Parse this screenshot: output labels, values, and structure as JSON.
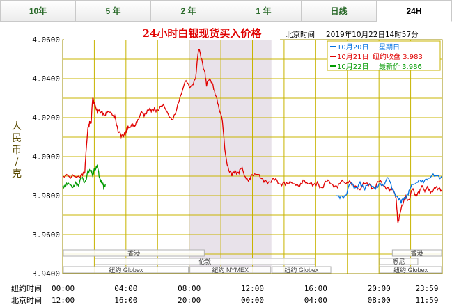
{
  "tabs": [
    {
      "label": "10年",
      "active": false
    },
    {
      "label": "5 年",
      "active": false
    },
    {
      "label": "2 年",
      "active": false
    },
    {
      "label": "1 年",
      "active": false
    },
    {
      "label": "日线",
      "active": false
    },
    {
      "label": "24H",
      "active": true
    }
  ],
  "header": {
    "title": "24小时白银现货买入价格",
    "time_label": "北京时间",
    "timestamp": "2019年10月22日14时57分"
  },
  "legend": [
    {
      "date": "10月20日",
      "text": "星期日",
      "color": "#0070e0"
    },
    {
      "date": "10月21日",
      "text": "纽约收盘 3.983",
      "color": "#e00000"
    },
    {
      "date": "10月22日",
      "text": "最新价 3.986",
      "color": "#009a00"
    }
  ],
  "y_axis_label": "人民币/克",
  "sessions": {
    "hongkong": "香港",
    "london": "伦敦",
    "globex": "纽约 Globex",
    "nymex": "纽约 NYMEX",
    "sydney": "悉尼"
  },
  "time_rows": {
    "ny_label": "纽约时间",
    "ny_ticks": [
      "00:00",
      "04:00",
      "08:00",
      "12:00",
      "16:00",
      "20:00",
      "23:59"
    ],
    "bj_label": "北京时间",
    "bj_ticks": [
      "12:00",
      "16:00",
      "20:00",
      "00:00",
      "04:00",
      "08:00",
      "11:59"
    ]
  },
  "colors": {
    "grid": "#c8b400",
    "nymex_shade": "#e8e2ea",
    "red": "#e00000",
    "green": "#009a00",
    "blue": "#0070e0"
  },
  "chart_data": {
    "type": "line",
    "title": "24小时白银现货买入价格",
    "ylabel": "人民币/克",
    "xlabel": "纽约时间",
    "ylim": [
      3.94,
      4.06
    ],
    "yticks": [
      "4.0600",
      "4.0400",
      "4.0200",
      "4.0000",
      "3.9800",
      "3.9600",
      "3.9400"
    ],
    "xlim": [
      0,
      24
    ],
    "grid": true,
    "legend_position": "top-right",
    "series": [
      {
        "name": "10月21日",
        "color": "#e00000",
        "x": [
          0,
          0.5,
          1,
          1.2,
          1.4,
          1.5,
          1.6,
          1.7,
          1.8,
          1.9,
          2.0,
          2.1,
          2.2,
          2.3,
          2.5,
          2.7,
          2.9,
          3.1,
          3.3,
          3.5,
          3.7,
          3.9,
          4.0,
          4.1,
          4.2,
          4.4,
          4.6,
          4.8,
          5.0,
          5.2,
          5.4,
          5.6,
          5.8,
          6.0,
          6.3,
          6.6,
          6.9,
          7.2,
          7.5,
          7.8,
          8.1,
          8.4,
          8.6,
          8.8,
          9.0,
          9.1,
          9.3,
          9.5,
          9.7,
          9.9,
          10.1,
          10.3,
          10.5,
          10.7,
          10.9,
          11.1,
          11.3,
          11.5,
          11.7,
          11.9,
          12.2,
          12.5,
          12.8,
          13.1,
          13.4,
          13.7,
          14.0,
          14.3,
          14.6,
          14.9,
          15.2,
          15.5,
          15.8,
          16.1,
          16.4,
          16.7,
          17.0,
          17.3,
          17.6,
          17.9,
          18.2,
          18.5,
          18.8,
          19.1,
          19.4,
          19.7,
          20.0,
          20.3,
          20.6,
          20.8,
          21.0,
          21.1,
          21.2,
          21.3,
          21.5,
          21.7,
          21.9,
          22.1,
          22.3,
          22.5,
          22.7,
          22.9,
          23.1,
          23.3,
          23.5,
          23.7,
          23.98
        ],
        "y": [
          3.99,
          3.989,
          3.99,
          3.991,
          3.992,
          4.005,
          4.015,
          4.018,
          4.017,
          4.03,
          4.028,
          4.025,
          4.022,
          4.024,
          4.023,
          4.021,
          4.023,
          4.022,
          4.021,
          4.013,
          4.01,
          4.012,
          4.013,
          4.014,
          4.015,
          4.017,
          4.016,
          4.019,
          4.023,
          4.022,
          4.024,
          4.023,
          4.025,
          4.024,
          4.026,
          4.023,
          4.019,
          4.024,
          4.032,
          4.039,
          4.036,
          4.04,
          4.055,
          4.05,
          4.043,
          4.036,
          4.04,
          4.037,
          4.031,
          4.024,
          4.018,
          4.001,
          3.993,
          3.99,
          3.993,
          3.992,
          3.994,
          3.99,
          3.988,
          3.99,
          3.991,
          3.989,
          3.988,
          3.987,
          3.988,
          3.986,
          3.987,
          3.986,
          3.986,
          3.985,
          3.988,
          3.986,
          3.985,
          3.987,
          3.984,
          3.987,
          3.986,
          3.985,
          3.987,
          3.986,
          3.987,
          3.985,
          3.983,
          3.986,
          3.986,
          3.984,
          3.987,
          3.985,
          3.984,
          3.983,
          3.981,
          3.977,
          3.966,
          3.97,
          3.975,
          3.98,
          3.978,
          3.983,
          3.98,
          3.982,
          3.985,
          3.982,
          3.984,
          3.982,
          3.984,
          3.983,
          3.983
        ]
      },
      {
        "name": "10月22日",
        "color": "#009a00",
        "x": [
          0,
          0.2,
          0.4,
          0.6,
          0.8,
          1.0,
          1.2,
          1.4,
          1.6,
          1.8,
          1.9,
          2.0,
          2.1,
          2.2,
          2.3,
          2.4,
          2.5,
          2.6,
          2.7
        ],
        "y": [
          3.985,
          3.985,
          3.986,
          3.984,
          3.987,
          3.985,
          3.989,
          3.987,
          3.993,
          3.992,
          3.99,
          3.994,
          3.994,
          3.995,
          3.99,
          3.988,
          3.987,
          3.983,
          3.986
        ]
      },
      {
        "name": "10月20日",
        "color": "#0070e0",
        "x": [
          17.3,
          17.6,
          17.9,
          18.2,
          18.5,
          18.8,
          19.1,
          19.4,
          19.7,
          20.0,
          20.3,
          20.6,
          20.9,
          21.2,
          21.4,
          21.6,
          21.8,
          22.0,
          22.3,
          22.6,
          22.9,
          23.2,
          23.5,
          23.98
        ],
        "y": [
          3.98,
          3.98,
          3.98,
          3.986,
          3.984,
          3.987,
          3.983,
          3.986,
          3.984,
          3.986,
          3.985,
          3.989,
          3.983,
          3.979,
          3.976,
          3.979,
          3.981,
          3.984,
          3.986,
          3.988,
          3.988,
          3.989,
          3.99,
          3.99
        ]
      }
    ]
  }
}
